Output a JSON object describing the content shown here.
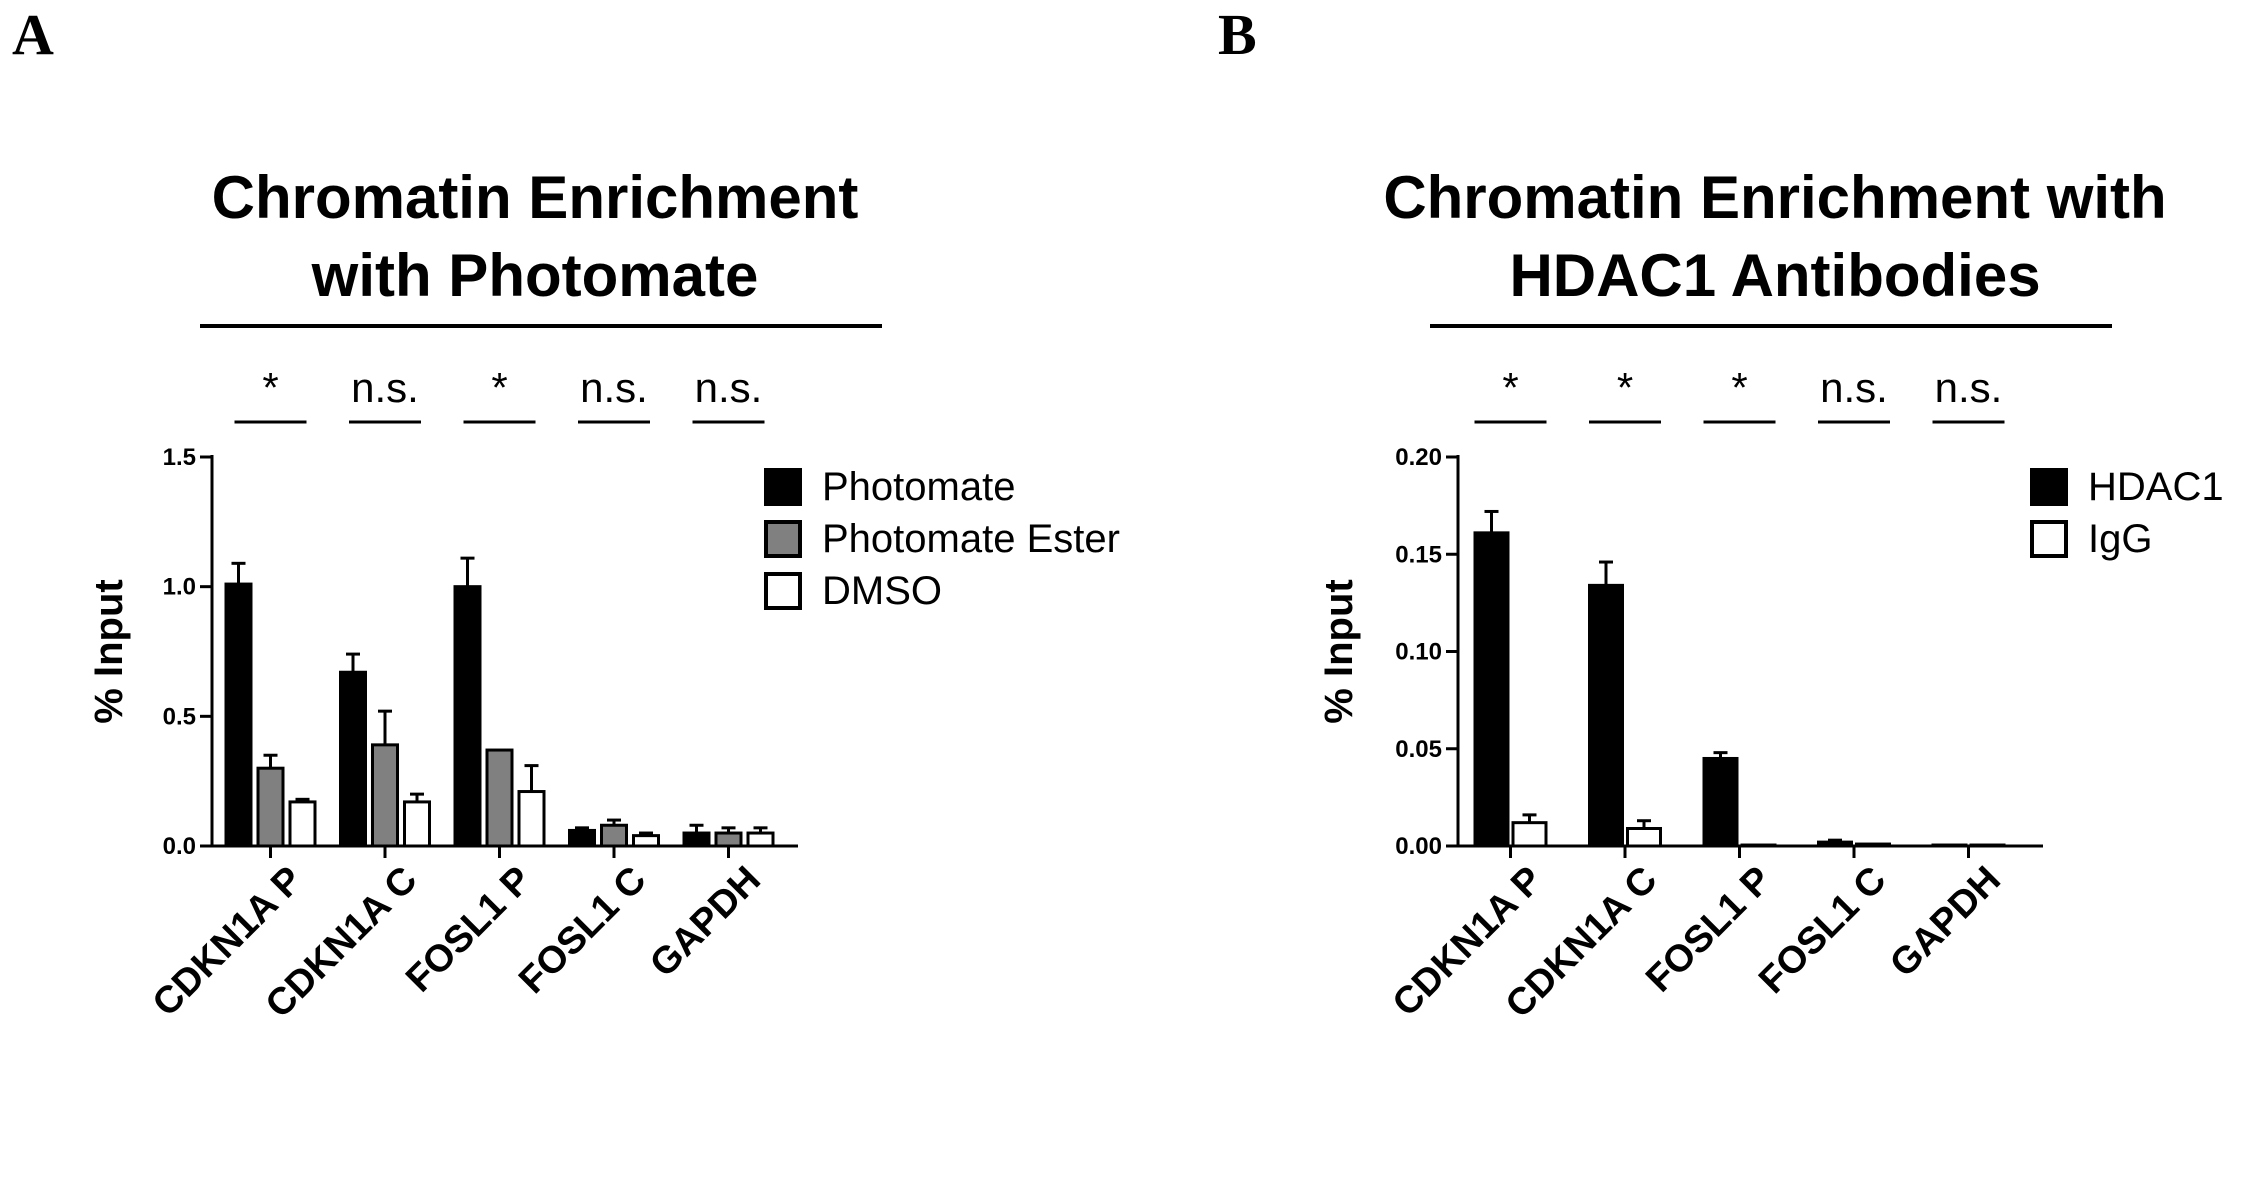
{
  "chart_data": [
    {
      "panel": "A",
      "type": "bar",
      "title_lines": [
        "Chromatin Enrichment",
        "with Photomate"
      ],
      "ylabel": "% Input",
      "xlabel": "",
      "ylim": [
        0,
        1.5
      ],
      "yticks": [
        "0.0",
        "0.5",
        "1.0",
        "1.5"
      ],
      "categories": [
        "CDKN1A P",
        "CDKN1A C",
        "FOSL1 P",
        "FOSL1 C",
        "GAPDH"
      ],
      "significance": [
        "*",
        "n.s.",
        "*",
        "n.s.",
        "n.s."
      ],
      "legend_position": "top-right",
      "grid": false,
      "series": [
        {
          "name": "Photomate",
          "color": "#000000",
          "values": [
            1.01,
            0.67,
            1.0,
            0.06,
            0.05
          ],
          "errors": [
            0.08,
            0.07,
            0.11,
            0.01,
            0.03
          ]
        },
        {
          "name": "Photomate Ester",
          "color": "#808080",
          "values": [
            0.3,
            0.39,
            0.37,
            0.08,
            0.05
          ],
          "errors": [
            0.05,
            0.13,
            0.0,
            0.02,
            0.02
          ]
        },
        {
          "name": "DMSO",
          "color": "#ffffff",
          "values": [
            0.17,
            0.17,
            0.21,
            0.04,
            0.05
          ],
          "errors": [
            0.01,
            0.03,
            0.1,
            0.01,
            0.02
          ]
        }
      ]
    },
    {
      "panel": "B",
      "type": "bar",
      "title_lines": [
        "Chromatin Enrichment with",
        "HDAC1 Antibodies"
      ],
      "ylabel": "% Input",
      "xlabel": "",
      "ylim": [
        0,
        0.2
      ],
      "yticks": [
        "0.00",
        "0.05",
        "0.10",
        "0.15",
        "0.20"
      ],
      "categories": [
        "CDKN1A P",
        "CDKN1A C",
        "FOSL1 P",
        "FOSL1 C",
        "GAPDH"
      ],
      "significance": [
        "*",
        "*",
        "*",
        "n.s.",
        "n.s."
      ],
      "legend_position": "top-right",
      "grid": false,
      "series": [
        {
          "name": "HDAC1",
          "color": "#000000",
          "values": [
            0.161,
            0.134,
            0.045,
            0.002,
            0.0005
          ],
          "errors": [
            0.011,
            0.012,
            0.003,
            0.001,
            0.0
          ]
        },
        {
          "name": "IgG",
          "color": "#ffffff",
          "values": [
            0.012,
            0.009,
            0.0005,
            0.001,
            0.0005
          ],
          "errors": [
            0.004,
            0.004,
            0.0,
            0.0,
            0.0
          ]
        }
      ]
    }
  ]
}
